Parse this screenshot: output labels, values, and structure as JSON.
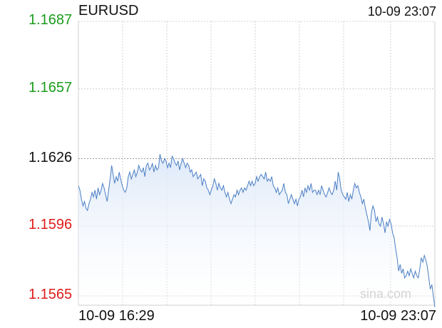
{
  "header": {
    "symbol": "EURUSD",
    "timestamp": "10-09 23:07"
  },
  "watermark": "sina.com",
  "colors": {
    "up": "#1a9b1a",
    "down": "#e01b1b",
    "neutral": "#111111",
    "line": "#4a7ec4",
    "fill": "#dfe9f8"
  },
  "chart_data": {
    "type": "area",
    "title": "EURUSD",
    "xlabel": "",
    "ylabel": "",
    "y_ticks": [
      {
        "label": "1.1687",
        "value": 1.1687,
        "status": "up"
      },
      {
        "label": "1.1657",
        "value": 1.1657,
        "status": "up"
      },
      {
        "label": "1.1626",
        "value": 1.1626,
        "status": "neutral"
      },
      {
        "label": "1.1596",
        "value": 1.1596,
        "status": "down"
      },
      {
        "label": "1.1565",
        "value": 1.1565,
        "status": "down"
      }
    ],
    "x_labels": [
      "10-09 16:29",
      "10-09 23:07"
    ],
    "ylim": [
      1.156,
      1.1687
    ],
    "reference_value": 1.1626,
    "grid": true,
    "series": [
      {
        "values": [
          1.1614,
          1.1612,
          1.1608,
          1.1605,
          1.1607,
          1.1604,
          1.1603,
          1.1606,
          1.1608,
          1.1611,
          1.1609,
          1.1612,
          1.1608,
          1.1613,
          1.161,
          1.1612,
          1.1615,
          1.1613,
          1.161,
          1.1607,
          1.1612,
          1.1617,
          1.1623,
          1.1619,
          1.1615,
          1.1618,
          1.1616,
          1.162,
          1.1617,
          1.1614,
          1.1612,
          1.1611,
          1.1613,
          1.1618,
          1.162,
          1.1617,
          1.1619,
          1.1621,
          1.1618,
          1.162,
          1.1623,
          1.1621,
          1.162,
          1.1622,
          1.1618,
          1.1623,
          1.1624,
          1.1621,
          1.1622,
          1.1624,
          1.162,
          1.1623,
          1.1621,
          1.1622,
          1.1628,
          1.1625,
          1.1624,
          1.1626,
          1.1625,
          1.1622,
          1.1624,
          1.1622,
          1.1627,
          1.1626,
          1.1624,
          1.1623,
          1.1625,
          1.1621,
          1.1624,
          1.1626,
          1.1624,
          1.1622,
          1.1624,
          1.1623,
          1.162,
          1.1621,
          1.1618,
          1.1619,
          1.162,
          1.1617,
          1.1618,
          1.1619,
          1.1614,
          1.1617,
          1.1616,
          1.1613,
          1.1612,
          1.161,
          1.1612,
          1.1614,
          1.1617,
          1.1615,
          1.1612,
          1.1615,
          1.1613,
          1.1612,
          1.1614,
          1.1611,
          1.1609,
          1.1611,
          1.1608,
          1.1606,
          1.1608,
          1.161,
          1.1609,
          1.1612,
          1.161,
          1.1612,
          1.1613,
          1.1611,
          1.1613,
          1.1612,
          1.1614,
          1.1616,
          1.1614,
          1.1616,
          1.1614,
          1.1615,
          1.1618,
          1.1616,
          1.1618,
          1.1619,
          1.1618,
          1.1617,
          1.162,
          1.1616,
          1.1617,
          1.1616,
          1.1618,
          1.1614,
          1.1613,
          1.1611,
          1.1613,
          1.161,
          1.1611,
          1.1612,
          1.1615,
          1.1611,
          1.161,
          1.1606,
          1.1608,
          1.161,
          1.1608,
          1.1606,
          1.1608,
          1.1605,
          1.1608,
          1.1609,
          1.1612,
          1.1609,
          1.1613,
          1.1611,
          1.1614,
          1.1612,
          1.1615,
          1.1611,
          1.1612,
          1.1612,
          1.161,
          1.1612,
          1.161,
          1.1614,
          1.1612,
          1.161,
          1.1609,
          1.1611,
          1.1613,
          1.1611,
          1.161,
          1.1612,
          1.1616,
          1.1612,
          1.162,
          1.1617,
          1.1612,
          1.161,
          1.1609,
          1.1608,
          1.1611,
          1.1607,
          1.161,
          1.1608,
          1.1612,
          1.1615,
          1.1613,
          1.1614,
          1.1611,
          1.1609,
          1.1606,
          1.1608,
          1.1604,
          1.1601,
          1.1598,
          1.1594,
          1.1602,
          1.1605,
          1.1603,
          1.1598,
          1.16,
          1.1597,
          1.1596,
          1.16,
          1.1597,
          1.1593,
          1.1598,
          1.1596,
          1.1599,
          1.1597,
          1.1593,
          1.1591,
          1.1586,
          1.1582,
          1.1576,
          1.1579,
          1.1575,
          1.1577,
          1.1573,
          1.1574,
          1.1576,
          1.1574,
          1.1577,
          1.1575,
          1.1573,
          1.1576,
          1.1574,
          1.1573,
          1.1577,
          1.1582,
          1.158,
          1.1583,
          1.1581,
          1.1578,
          1.1573,
          1.1568,
          1.157,
          1.1565,
          1.156
        ]
      }
    ]
  }
}
